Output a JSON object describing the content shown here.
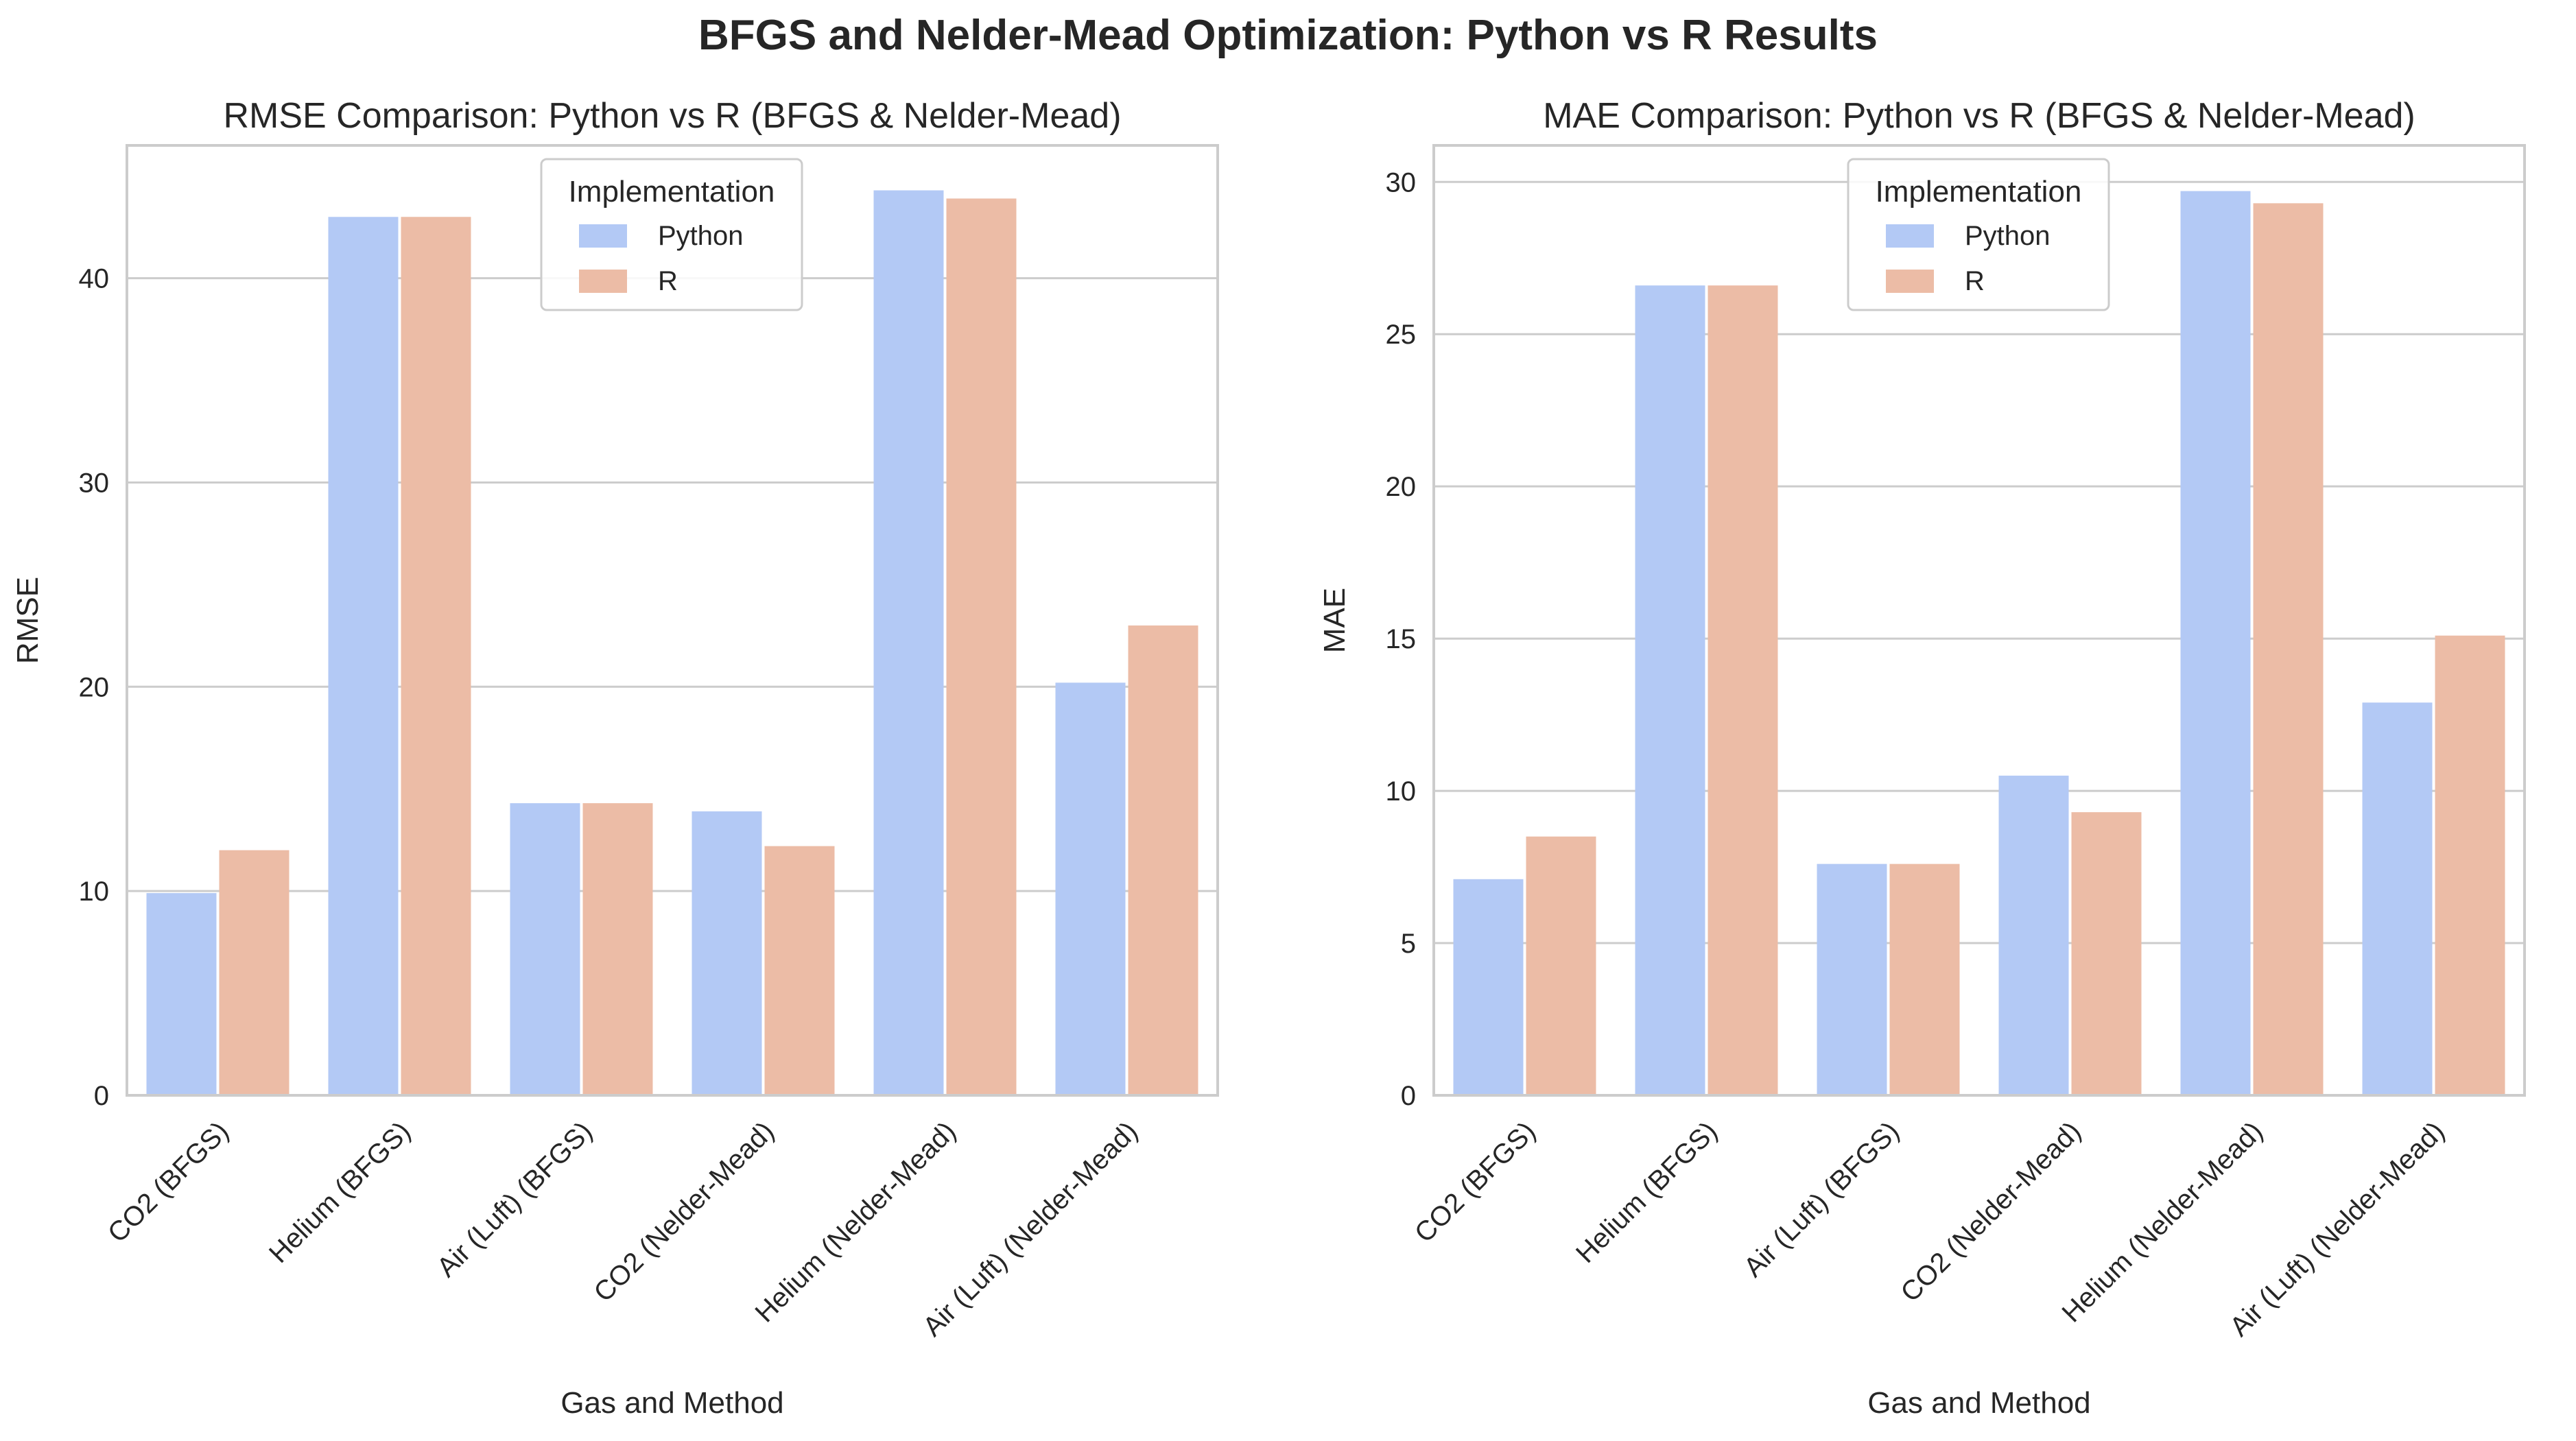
{
  "figure": {
    "suptitle": "BFGS and Nelder-Mead Optimization: Python vs R Results"
  },
  "colors": {
    "python": "#b3c9f5",
    "r": "#ecbca6",
    "grid": "#cccccc",
    "spine": "#cccccc",
    "text": "#262626"
  },
  "chart_data": [
    {
      "type": "bar",
      "title": "RMSE Comparison: Python vs R (BFGS & Nelder-Mead)",
      "xlabel": "Gas and Method",
      "ylabel": "RMSE",
      "categories": [
        "CO2 (BFGS)",
        "Helium (BFGS)",
        "Air (Luft) (BFGS)",
        "CO2 (Nelder-Mead)",
        "Helium (Nelder-Mead)",
        "Air (Luft) (Nelder-Mead)"
      ],
      "series": [
        {
          "name": "Python",
          "values": [
            9.9,
            43.0,
            14.3,
            13.9,
            44.3,
            20.2
          ]
        },
        {
          "name": "R",
          "values": [
            12.0,
            43.0,
            14.3,
            12.2,
            43.9,
            23.0
          ]
        }
      ],
      "ylim": [
        0,
        46.5
      ],
      "yticks": [
        0,
        10,
        20,
        30,
        40
      ],
      "grid": true,
      "legend": {
        "title": "Implementation",
        "position": "top-center"
      }
    },
    {
      "type": "bar",
      "title": "MAE Comparison: Python vs R (BFGS & Nelder-Mead)",
      "xlabel": "Gas and Method",
      "ylabel": "MAE",
      "categories": [
        "CO2 (BFGS)",
        "Helium (BFGS)",
        "Air (Luft) (BFGS)",
        "CO2 (Nelder-Mead)",
        "Helium (Nelder-Mead)",
        "Air (Luft) (Nelder-Mead)"
      ],
      "series": [
        {
          "name": "Python",
          "values": [
            7.1,
            26.6,
            7.6,
            10.5,
            29.7,
            12.9
          ]
        },
        {
          "name": "R",
          "values": [
            8.5,
            26.6,
            7.6,
            9.3,
            29.3,
            15.1
          ]
        }
      ],
      "ylim": [
        0,
        31.2
      ],
      "yticks": [
        0,
        5,
        10,
        15,
        20,
        25,
        30
      ],
      "grid": true,
      "legend": {
        "title": "Implementation",
        "position": "top-center"
      }
    }
  ]
}
